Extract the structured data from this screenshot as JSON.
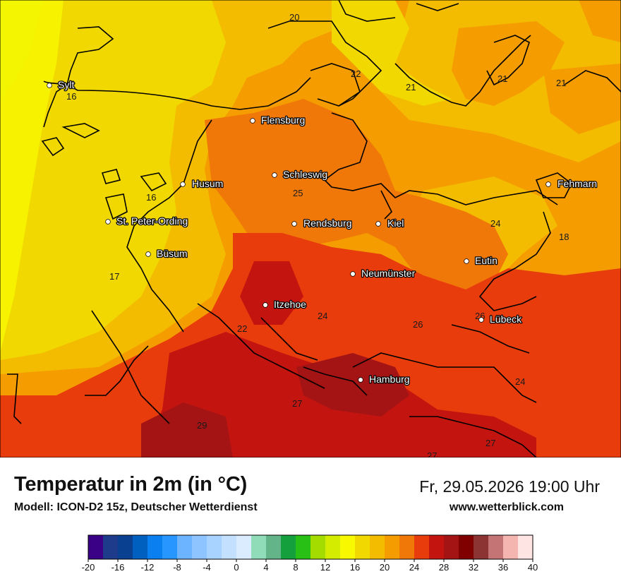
{
  "header": {
    "title": "Temperatur in 2m (in °C)",
    "model": "Modell: ICON-D2 15z, Deutscher Wetterdienst",
    "datetime": "Fr, 29.05.2026 19:00 Uhr",
    "website": "www.wetterblick.com"
  },
  "cities": [
    {
      "name": "Sylt"
    },
    {
      "name": "Flensburg"
    },
    {
      "name": "Schleswig"
    },
    {
      "name": "Husum"
    },
    {
      "name": "St. Peter-Ording"
    },
    {
      "name": "Rendsburg"
    },
    {
      "name": "Kiel"
    },
    {
      "name": "Fehmarn"
    },
    {
      "name": "Büsum"
    },
    {
      "name": "Neumünster"
    },
    {
      "name": "Eutin"
    },
    {
      "name": "Itzehoe"
    },
    {
      "name": "Lübeck"
    },
    {
      "name": "Hamburg"
    }
  ],
  "value_labels": [
    "20",
    "22",
    "21",
    "21",
    "21",
    "16",
    "16",
    "25",
    "24",
    "18",
    "17",
    "24",
    "26",
    "26",
    "22",
    "24",
    "27",
    "29",
    "27",
    "27"
  ],
  "legend": {
    "colors": [
      "#3a0086",
      "#1e3a8a",
      "#0a4090",
      "#0060c0",
      "#0a80f0",
      "#2896ff",
      "#6cb4ff",
      "#8ec4ff",
      "#a8d2ff",
      "#c4e0ff",
      "#dcecff",
      "#90dcb8",
      "#64b48a",
      "#14a03c",
      "#28c014",
      "#a4dc00",
      "#d4ec00",
      "#f8f800",
      "#f0d800",
      "#f4bc00",
      "#f49c00",
      "#f07808",
      "#e83c0c",
      "#c41410",
      "#a41414",
      "#800000",
      "#8c3434",
      "#c47474",
      "#f4b4b0",
      "#ffe4e4"
    ],
    "tick_labels": [
      "-20",
      "-16",
      "-12",
      "-8",
      "-4",
      "0",
      "4",
      "8",
      "12",
      "16",
      "20",
      "24",
      "28",
      "32",
      "36",
      "40"
    ]
  }
}
